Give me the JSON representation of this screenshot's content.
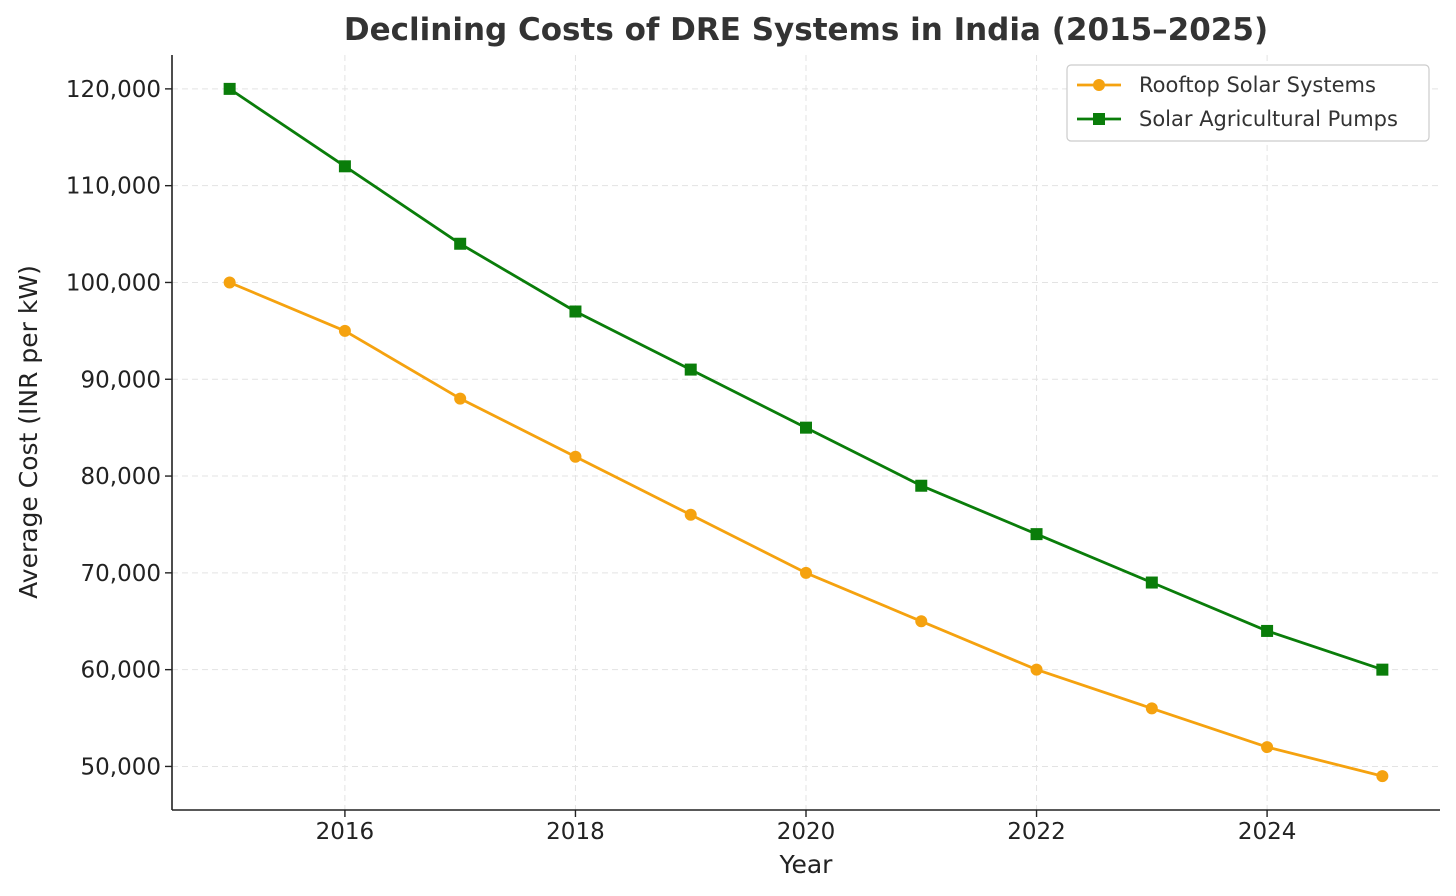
{
  "chart_data": {
    "type": "line",
    "title": "Declining Costs of DRE Systems in India (2015–2025)",
    "xlabel": "Year",
    "ylabel": "Average Cost (INR per kW)",
    "x": [
      2015,
      2016,
      2017,
      2018,
      2019,
      2020,
      2021,
      2022,
      2023,
      2024,
      2025
    ],
    "xlim": [
      2014.5,
      2025.5
    ],
    "ylim": [
      45500,
      123500
    ],
    "xticks": [
      2016,
      2018,
      2020,
      2022,
      2024
    ],
    "xtick_labels": [
      "2016",
      "2018",
      "2020",
      "2022",
      "2024"
    ],
    "yticks": [
      50000,
      60000,
      70000,
      80000,
      90000,
      100000,
      110000,
      120000
    ],
    "ytick_labels": [
      "50,000",
      "60,000",
      "70,000",
      "80,000",
      "90,000",
      "100,000",
      "110,000",
      "120,000"
    ],
    "grid": true,
    "legend_position": "top-right",
    "series": [
      {
        "name": "Rooftop Solar Systems",
        "color": "#f5a20f",
        "marker": "circle",
        "values": [
          100000,
          95000,
          88000,
          82000,
          76000,
          70000,
          65000,
          60000,
          56000,
          52000,
          49000
        ]
      },
      {
        "name": "Solar Agricultural Pumps",
        "color": "#0a7d0a",
        "marker": "square",
        "values": [
          120000,
          112000,
          104000,
          97000,
          91000,
          85000,
          79000,
          74000,
          69000,
          64000,
          60000
        ]
      }
    ]
  }
}
